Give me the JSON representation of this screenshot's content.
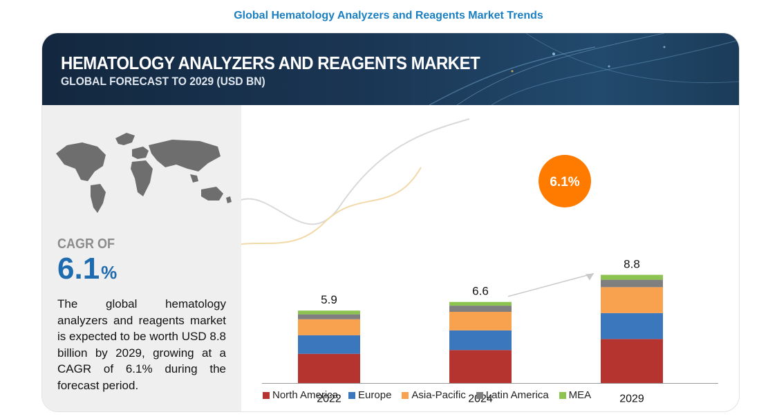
{
  "page_title": "Global Hematology Analyzers and Reagents Market Trends",
  "banner": {
    "title": "HEMATOLOGY ANALYZERS AND REAGENTS MARKET",
    "subtitle": "GLOBAL FORECAST TO 2029 (USD BN)"
  },
  "left_panel": {
    "cagr_label": "CAGR OF",
    "cagr_value": "6.1",
    "cagr_unit": "%",
    "description": "The global hematology analyzers and reagents market is expected to be worth USD 8.8 billion by 2029, growing at a CAGR of 6.1% during the forecast period."
  },
  "colors": {
    "North America": "#b5342f",
    "Europe": "#3a77bd",
    "Asia-Pacific": "#f8a14e",
    "Latin America": "#7f7f7f",
    "MEA": "#8dc350",
    "cagr_badge": "#ff7b00"
  },
  "chart_data": {
    "type": "bar",
    "stacked": true,
    "categories": [
      "2022",
      "2024",
      "2029"
    ],
    "totals": [
      "5.9",
      "6.6",
      "8.8"
    ],
    "series": [
      {
        "name": "North America",
        "values": [
          2.4,
          2.7,
          3.6
        ]
      },
      {
        "name": "Europe",
        "values": [
          1.5,
          1.6,
          2.1
        ]
      },
      {
        "name": "Asia-Pacific",
        "values": [
          1.3,
          1.5,
          2.1
        ]
      },
      {
        "name": "Latin America",
        "values": [
          0.4,
          0.5,
          0.6
        ]
      },
      {
        "name": "MEA",
        "values": [
          0.3,
          0.3,
          0.4
        ]
      }
    ],
    "ylim": [
      0,
      8.8
    ],
    "cagr_badge": "6.1%",
    "legend_position": "bottom"
  }
}
